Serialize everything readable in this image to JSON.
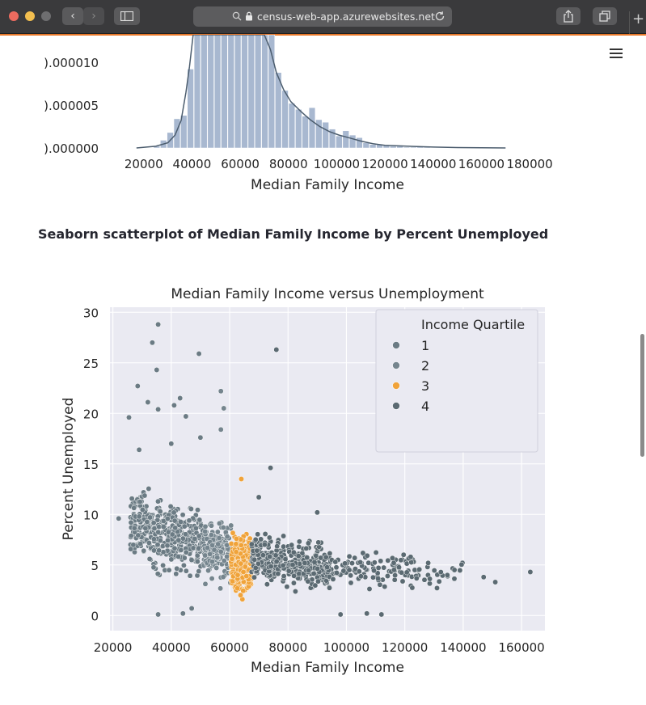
{
  "browser": {
    "url": "census-web-app.azurewebsites.net"
  },
  "histogram": {
    "chart_data": {
      "type": "bar",
      "xlabel": "Median Family Income",
      "ylabel": "",
      "x_ticks": [
        20000,
        40000,
        60000,
        80000,
        100000,
        120000,
        140000,
        160000,
        180000
      ],
      "x_tick_labels": [
        "20000",
        "40000",
        "60000",
        "80000",
        "100000",
        "120000",
        "140000",
        "160000",
        "180000"
      ],
      "y_ticks": [
        0.0,
        5e-06,
        1e-05
      ],
      "y_tick_labels": [
        ").000000",
        ").000005",
        ").000010"
      ],
      "xlim": [
        5000,
        186000
      ],
      "ylim_visible": [
        0.0,
        1.32e-05
      ],
      "bin_width": 2800,
      "bins": [
        {
          "x": 25500,
          "y": 2e-07
        },
        {
          "x": 28300,
          "y": 9e-07
        },
        {
          "x": 31100,
          "y": 1.8e-06
        },
        {
          "x": 33900,
          "y": 3.4e-06
        },
        {
          "x": 36700,
          "y": 3.8e-06
        },
        {
          "x": 39500,
          "y": 9.2e-06
        },
        {
          "x": 42300,
          "y": 1.32e-05
        },
        {
          "x": 45100,
          "y": 1.32e-05
        },
        {
          "x": 47900,
          "y": 1.32e-05
        },
        {
          "x": 50700,
          "y": 1.32e-05
        },
        {
          "x": 53500,
          "y": 1.32e-05
        },
        {
          "x": 56300,
          "y": 1.32e-05
        },
        {
          "x": 59100,
          "y": 1.32e-05
        },
        {
          "x": 61900,
          "y": 1.32e-05
        },
        {
          "x": 64700,
          "y": 1.32e-05
        },
        {
          "x": 67500,
          "y": 1.32e-05
        },
        {
          "x": 70300,
          "y": 1.32e-05
        },
        {
          "x": 73100,
          "y": 1.32e-05
        },
        {
          "x": 75900,
          "y": 8.8e-06
        },
        {
          "x": 78700,
          "y": 6.7e-06
        },
        {
          "x": 81500,
          "y": 5.2e-06
        },
        {
          "x": 84300,
          "y": 4.5e-06
        },
        {
          "x": 87100,
          "y": 3.7e-06
        },
        {
          "x": 89900,
          "y": 4.7e-06
        },
        {
          "x": 92700,
          "y": 3.3e-06
        },
        {
          "x": 95500,
          "y": 3e-06
        },
        {
          "x": 98300,
          "y": 2.2e-06
        },
        {
          "x": 101100,
          "y": 1.4e-06
        },
        {
          "x": 103900,
          "y": 2e-06
        },
        {
          "x": 106700,
          "y": 1.5e-06
        },
        {
          "x": 109500,
          "y": 1.2e-06
        },
        {
          "x": 112300,
          "y": 6e-07
        },
        {
          "x": 115100,
          "y": 4e-07
        },
        {
          "x": 117900,
          "y": 4e-07
        },
        {
          "x": 120700,
          "y": 3e-07
        },
        {
          "x": 123500,
          "y": 2e-07
        },
        {
          "x": 126300,
          "y": 2e-07
        },
        {
          "x": 129100,
          "y": 1e-07
        },
        {
          "x": 131900,
          "y": 1e-07
        },
        {
          "x": 134700,
          "y": 2e-07
        },
        {
          "x": 137500,
          "y": 1e-07
        },
        {
          "x": 151000,
          "y": 5e-08
        }
      ],
      "kde": [
        [
          17000,
          0.0
        ],
        [
          25000,
          2e-07
        ],
        [
          30000,
          6e-07
        ],
        [
          33000,
          1.5e-06
        ],
        [
          35500,
          3.2e-06
        ],
        [
          37500,
          6.5e-06
        ],
        [
          39000,
          9.5e-06
        ],
        [
          40500,
          1.32e-05
        ],
        [
          70000,
          1.32e-05
        ],
        [
          72500,
          1.15e-05
        ],
        [
          75000,
          8.8e-06
        ],
        [
          78000,
          6.8e-06
        ],
        [
          81000,
          5.4e-06
        ],
        [
          85000,
          4.3e-06
        ],
        [
          89000,
          3.3e-06
        ],
        [
          93000,
          2.5e-06
        ],
        [
          97000,
          1.9e-06
        ],
        [
          101000,
          1.5e-06
        ],
        [
          105000,
          1.2e-06
        ],
        [
          110000,
          8e-07
        ],
        [
          115000,
          5e-07
        ],
        [
          120000,
          3e-07
        ],
        [
          130000,
          2e-07
        ],
        [
          140000,
          1e-07
        ],
        [
          150000,
          5e-08
        ],
        [
          170000,
          0.0
        ]
      ],
      "bar_color": "#a8b8d0",
      "kde_color": "#4c5d6e"
    }
  },
  "section": {
    "title": "Seaborn scatterplot of Median Family Income by Percent Unemployed"
  },
  "scatter": {
    "chart_data": {
      "type": "scatter",
      "title": "Median Family Income versus Unemployment",
      "xlabel": "Median Family Income",
      "ylabel": "Percent Unemployed",
      "xlim": [
        19000,
        168000
      ],
      "ylim": [
        -1.5,
        30.5
      ],
      "x_ticks": [
        20000,
        40000,
        60000,
        80000,
        100000,
        120000,
        140000,
        160000
      ],
      "x_tick_labels": [
        "20000",
        "40000",
        "60000",
        "80000",
        "100000",
        "120000",
        "140000",
        "160000"
      ],
      "y_ticks": [
        0,
        5,
        10,
        15,
        20,
        25,
        30
      ],
      "y_tick_labels": [
        "0",
        "5",
        "10",
        "15",
        "20",
        "25",
        "30"
      ],
      "grid": true,
      "background": "#eaeaf2",
      "legend": {
        "title": "Income Quartile",
        "placement": "top-right",
        "entries": [
          {
            "label": "1",
            "color": "#6b7b84"
          },
          {
            "label": "2",
            "color": "#75858e"
          },
          {
            "label": "3",
            "color": "#f0a33a"
          },
          {
            "label": "4",
            "color": "#5b6a72"
          }
        ]
      },
      "series": [
        {
          "quartile": "1",
          "x_range": [
            22000,
            51000
          ],
          "color": "#6b7b84"
        },
        {
          "quartile": "2",
          "x_range": [
            51000,
            60500
          ],
          "color": "#75858e"
        },
        {
          "quartile": "3",
          "x_range": [
            60500,
            67500
          ],
          "color": "#f0a33a"
        },
        {
          "quartile": "4",
          "x_range": [
            67500,
            165000
          ],
          "color": "#5b6a72"
        }
      ],
      "points": [
        [
          35500,
          28.8
        ],
        [
          33500,
          27.0
        ],
        [
          35000,
          24.3
        ],
        [
          49500,
          25.9
        ],
        [
          57000,
          22.2
        ],
        [
          76000,
          26.3
        ],
        [
          28500,
          22.7
        ],
        [
          32000,
          21.1
        ],
        [
          43000,
          21.5
        ],
        [
          41000,
          20.8
        ],
        [
          25500,
          19.6
        ],
        [
          58000,
          20.5
        ],
        [
          35500,
          20.4
        ],
        [
          45000,
          19.7
        ],
        [
          64000,
          13.5
        ],
        [
          22000,
          9.6
        ],
        [
          35500,
          0.1
        ],
        [
          44000,
          0.2
        ],
        [
          47000,
          0.7
        ],
        [
          98000,
          0.1
        ],
        [
          107000,
          0.2
        ],
        [
          112000,
          0.1
        ],
        [
          147000,
          3.8
        ],
        [
          151000,
          3.3
        ],
        [
          163000,
          4.3
        ],
        [
          137000,
          4.5
        ],
        [
          128000,
          5.2
        ],
        [
          122000,
          5.8
        ],
        [
          90000,
          10.2
        ],
        [
          74000,
          14.6
        ],
        [
          70000,
          11.7
        ],
        [
          57000,
          18.4
        ],
        [
          50000,
          17.6
        ],
        [
          40000,
          17.0
        ],
        [
          29000,
          16.4
        ]
      ]
    }
  }
}
